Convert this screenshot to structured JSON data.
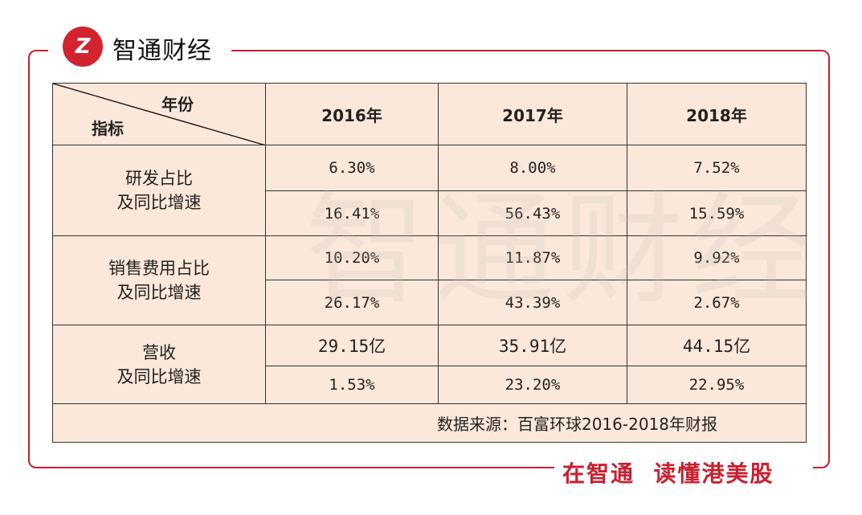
{
  "brand": {
    "logo_text": "Z",
    "name": "智通财经",
    "slogan": "在智通  读懂港美股",
    "accent": "#c8202f"
  },
  "table": {
    "corner_year": "年份",
    "corner_indicator": "指标",
    "years": [
      "2016年",
      "2017年",
      "2018年"
    ],
    "groups": [
      {
        "label1": "研发占比",
        "label2": "及同比增速",
        "rows": [
          [
            "6.30%",
            "8.00%",
            "7.52%"
          ],
          [
            "16.41%",
            "56.43%",
            "15.59%"
          ]
        ]
      },
      {
        "label1": "销售费用占比",
        "label2": "及同比增速",
        "rows": [
          [
            "10.20%",
            "11.87%",
            "9.92%"
          ],
          [
            "26.17%",
            "43.39%",
            "2.67%"
          ]
        ]
      },
      {
        "label1": "营收",
        "label2": "及同比增速",
        "rows": [
          [
            "29.15亿",
            "35.91亿",
            "44.15亿"
          ],
          [
            "1.53%",
            "23.20%",
            "22.95%"
          ]
        ]
      }
    ],
    "source": "数据来源：百富环球2016-2018年财报"
  }
}
